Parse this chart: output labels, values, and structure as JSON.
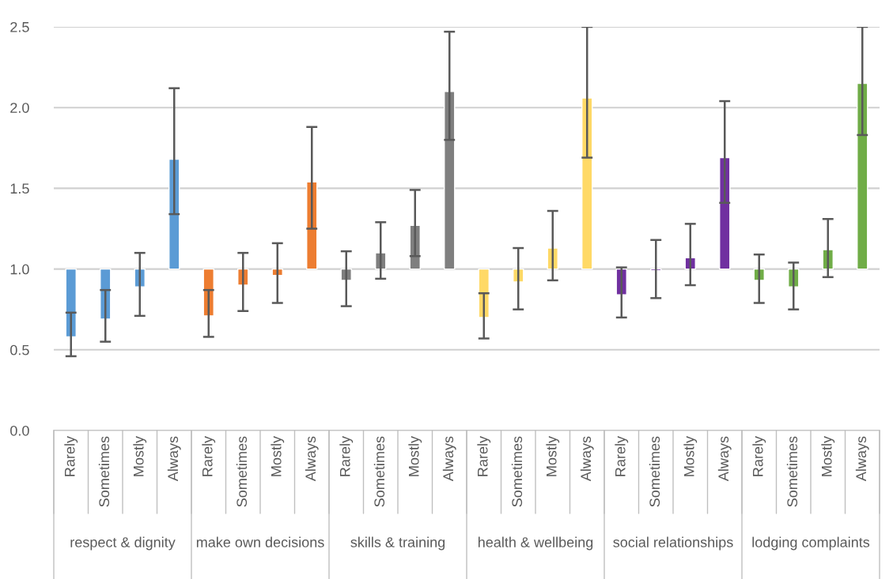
{
  "chart_data": {
    "type": "bar",
    "categories": [
      "Rarely",
      "Sometimes",
      "Mostly",
      "Always",
      "Rarely",
      "Sometimes",
      "Mostly",
      "Always",
      "Rarely",
      "Sometimes",
      "Mostly",
      "Always",
      "Rarely",
      "Sometimes",
      "Mostly",
      "Always",
      "Rarely",
      "Sometimes",
      "Mostly",
      "Always",
      "Rarely",
      "Sometimes",
      "Mostly",
      "Always"
    ],
    "base": [
      1,
      1,
      1,
      1,
      1,
      1,
      1,
      1,
      1,
      1,
      1,
      1,
      1,
      1,
      1,
      1,
      1,
      1,
      1,
      1,
      1,
      1,
      1,
      1
    ],
    "values": [
      -0.42,
      -0.31,
      -0.11,
      0.68,
      -0.29,
      -0.1,
      -0.04,
      0.54,
      -0.07,
      0.1,
      0.27,
      1.1,
      -0.3,
      -0.08,
      0.13,
      1.06,
      -0.16,
      -0.01,
      0.07,
      0.69,
      -0.07,
      -0.11,
      0.12,
      1.15
    ],
    "colors": [
      "#5b9bd5",
      "#5b9bd5",
      "#5b9bd5",
      "#5b9bd5",
      "#ed7d31",
      "#ed7d31",
      "#ed7d31",
      "#ed7d31",
      "#7f7f7f",
      "#7f7f7f",
      "#7f7f7f",
      "#7f7f7f",
      "#ffd966",
      "#ffd966",
      "#ffd966",
      "#ffd966",
      "#7030a0",
      "#7030a0",
      "#7030a0",
      "#7030a0",
      "#70ad47",
      "#70ad47",
      "#70ad47",
      "#70ad47"
    ],
    "errors": [
      [
        0.46,
        0.73
      ],
      [
        0.55,
        0.87
      ],
      [
        0.71,
        1.1
      ],
      [
        1.34,
        2.12
      ],
      [
        0.58,
        0.87
      ],
      [
        0.74,
        1.1
      ],
      [
        0.79,
        1.16
      ],
      [
        1.25,
        1.88
      ],
      [
        0.77,
        1.11
      ],
      [
        0.94,
        1.29
      ],
      [
        1.08,
        1.49
      ],
      [
        1.8,
        2.47
      ],
      [
        0.57,
        0.85
      ],
      [
        0.75,
        1.13
      ],
      [
        0.93,
        1.36
      ],
      [
        1.69,
        2.5
      ],
      [
        0.7,
        1.01
      ],
      [
        0.82,
        1.18
      ],
      [
        0.9,
        1.28
      ],
      [
        1.41,
        2.04
      ],
      [
        0.79,
        1.09
      ],
      [
        0.75,
        1.04
      ],
      [
        0.95,
        1.31
      ],
      [
        1.83,
        2.5
      ]
    ],
    "annotations": [
      "respect & dignity",
      "make own decisions",
      "skills & training",
      "health & wellbeing",
      "social relationships",
      "lodging complaints"
    ],
    "ylim": [
      0,
      2.5
    ],
    "yticks": [
      {
        "value": 0,
        "label": "0.0"
      },
      {
        "value": 0.5,
        "label": "0.5"
      },
      {
        "value": 1,
        "label": "1.0"
      },
      {
        "value": 1.5,
        "label": "1.5"
      },
      {
        "value": 2,
        "label": "2.0"
      },
      {
        "value": 2.5,
        "label": "2.5"
      }
    ],
    "grid": "y"
  }
}
